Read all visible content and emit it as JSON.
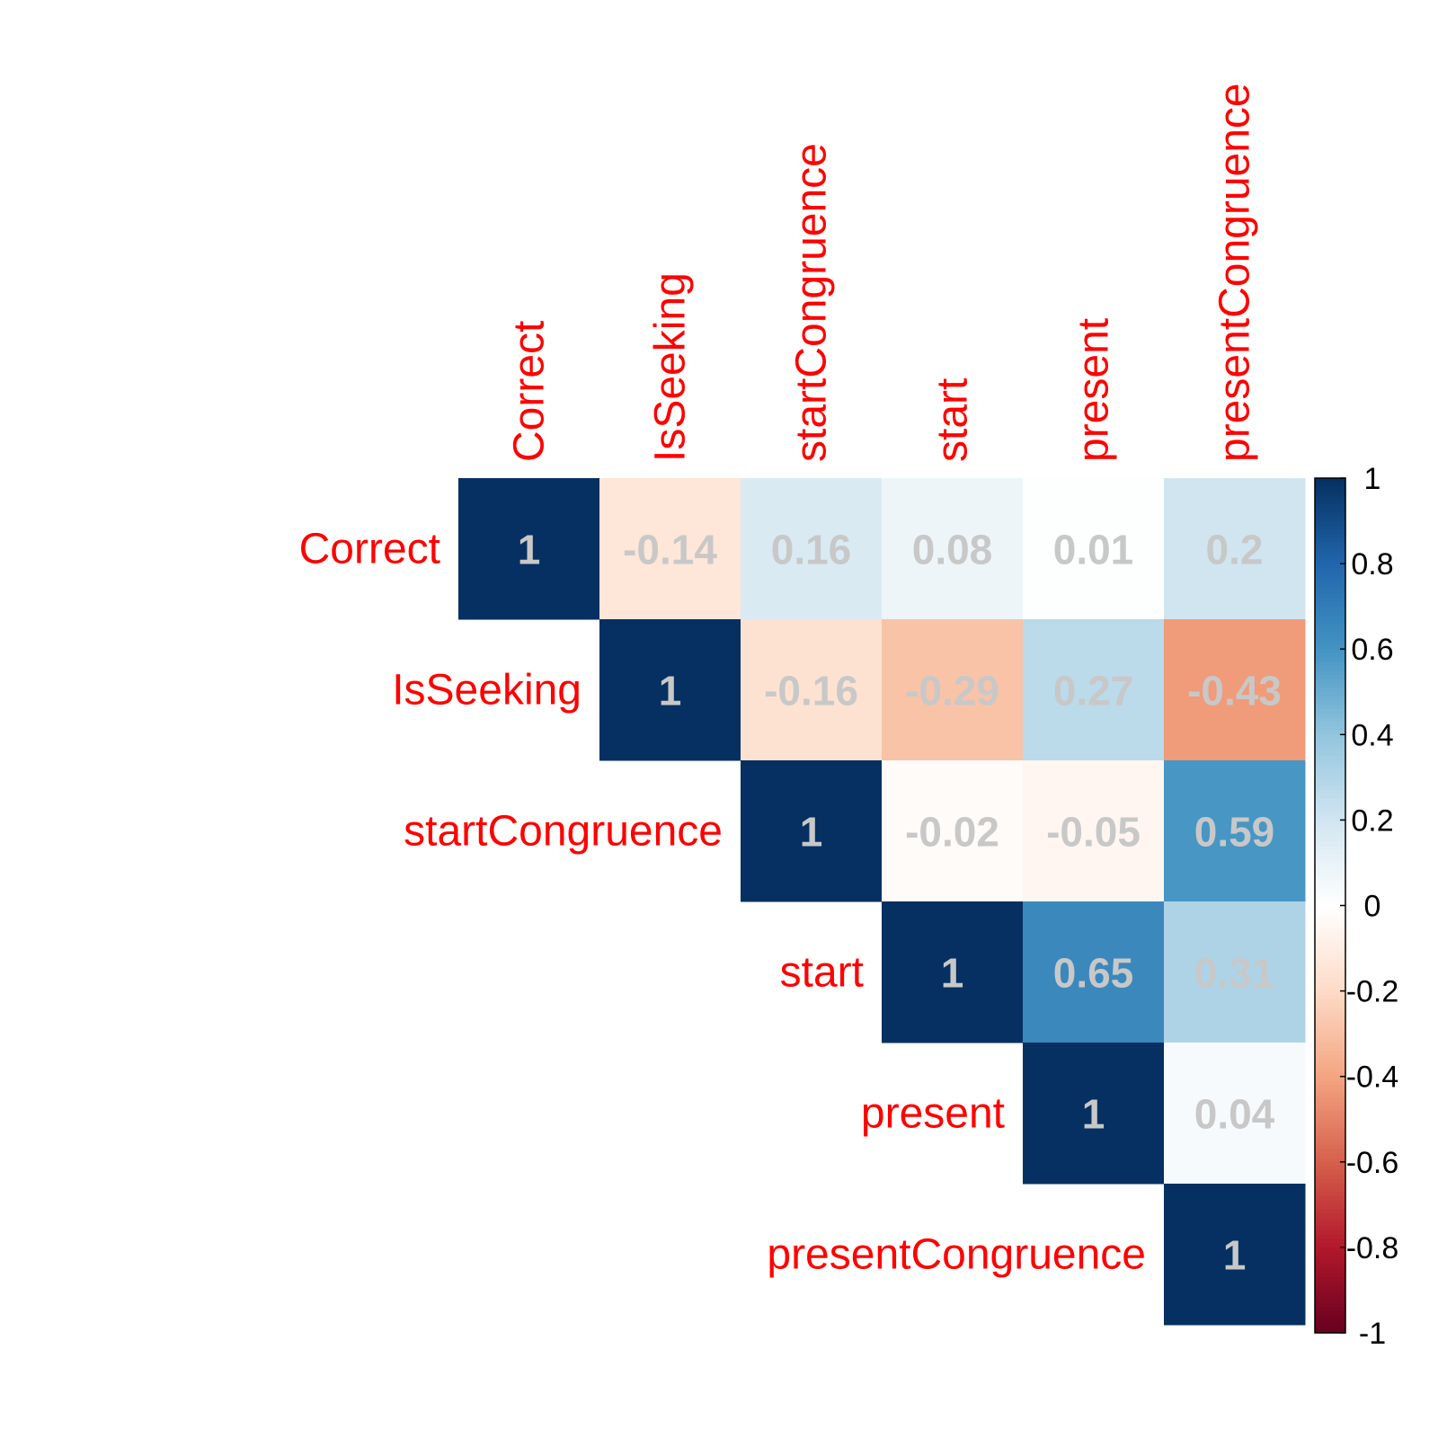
{
  "chart_data": {
    "type": "heatmap",
    "layout": "upper-triangle correlation matrix",
    "variables": [
      "Correct",
      "IsSeeking",
      "startCongruence",
      "start",
      "present",
      "presentCongruence"
    ],
    "matrix": [
      [
        1,
        -0.14,
        0.16,
        0.08,
        0.01,
        0.2
      ],
      [
        null,
        1,
        -0.16,
        -0.29,
        0.27,
        -0.43
      ],
      [
        null,
        null,
        1,
        -0.02,
        -0.05,
        0.59
      ],
      [
        null,
        null,
        null,
        1,
        0.65,
        0.31
      ],
      [
        null,
        null,
        null,
        null,
        1,
        0.04
      ],
      [
        null,
        null,
        null,
        null,
        null,
        1
      ]
    ],
    "labels": [
      [
        "1",
        "-0.14",
        "0.16",
        "0.08",
        "0.01",
        "0.2"
      ],
      [
        "",
        "1",
        "-0.16",
        "-0.29",
        "0.27",
        "-0.43"
      ],
      [
        "",
        "",
        "1",
        "-0.02",
        "-0.05",
        "0.59"
      ],
      [
        "",
        "",
        "",
        "1",
        "0.65",
        "0.31"
      ],
      [
        "",
        "",
        "",
        "",
        "1",
        "0.04"
      ],
      [
        "",
        "",
        "",
        "",
        "",
        "1"
      ]
    ],
    "color_range": [
      -1,
      1
    ],
    "legend": {
      "placement": "right",
      "ticks": [
        "1",
        "0.8",
        "0.6",
        "0.4",
        "0.2",
        "0",
        "-0.2",
        "-0.4",
        "-0.6",
        "-0.8",
        "-1"
      ],
      "tick_values": [
        1,
        0.8,
        0.6,
        0.4,
        0.2,
        0,
        -0.2,
        -0.4,
        -0.6,
        -0.8,
        -1
      ]
    },
    "colors": {
      "label_text": "#ff0000",
      "number_text_strong": "#c8c8c8",
      "number_text_unit": "#c8c8c8",
      "scale": [
        "#67001F",
        "#B2182B",
        "#D6604D",
        "#F4A582",
        "#FDDBC7",
        "#FFFFFF",
        "#D1E5F0",
        "#92C5DE",
        "#4393C3",
        "#2166AC",
        "#053061"
      ]
    }
  }
}
